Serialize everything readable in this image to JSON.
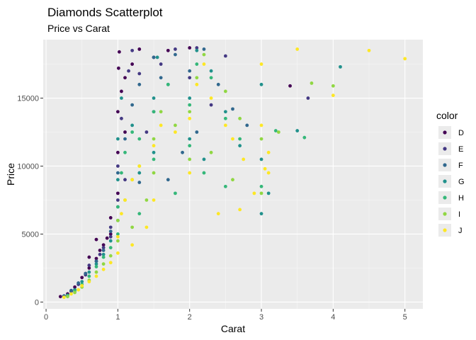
{
  "chart_data": {
    "type": "scatter",
    "title": "Diamonds Scatterplot",
    "subtitle": "Price vs Carat",
    "xlabel": "Carat",
    "ylabel": "Price",
    "xlim": [
      -0.04,
      5.25
    ],
    "ylim": [
      -500,
      19300
    ],
    "x_ticks": [
      0,
      1,
      2,
      3,
      4,
      5
    ],
    "y_ticks": [
      0,
      5000,
      10000,
      15000
    ],
    "y_tick_labels": [
      "0",
      "5000",
      "10000",
      "15000"
    ],
    "grid": true,
    "legend": {
      "title": "color",
      "placement": "right",
      "entries": [
        "D",
        "E",
        "F",
        "G",
        "H",
        "I",
        "J"
      ]
    },
    "colors": {
      "D": "#440154",
      "E": "#443983",
      "F": "#31688e",
      "G": "#21918c",
      "H": "#35b779",
      "I": "#90d743",
      "J": "#fde725"
    },
    "panel_background": "#ebebeb",
    "series": [
      {
        "name": "D",
        "points": [
          [
            0.2,
            400
          ],
          [
            0.3,
            600
          ],
          [
            0.4,
            1100
          ],
          [
            0.5,
            1800
          ],
          [
            0.6,
            2500
          ],
          [
            0.7,
            3200
          ],
          [
            0.8,
            4200
          ],
          [
            0.9,
            5000
          ],
          [
            0.9,
            6200
          ],
          [
            1.0,
            8000
          ],
          [
            1.0,
            11000
          ],
          [
            1.0,
            14000
          ],
          [
            1.01,
            17200
          ],
          [
            1.02,
            18400
          ],
          [
            1.05,
            15500
          ],
          [
            1.1,
            12500
          ],
          [
            1.1,
            16500
          ],
          [
            1.2,
            17500
          ],
          [
            1.3,
            18600
          ],
          [
            1.5,
            18000
          ],
          [
            1.7,
            18500
          ],
          [
            2.0,
            18700
          ],
          [
            3.4,
            15900
          ],
          [
            0.55,
            2100
          ],
          [
            0.75,
            3800
          ],
          [
            0.85,
            4700
          ],
          [
            0.35,
            800
          ],
          [
            0.6,
            3300
          ],
          [
            0.7,
            4600
          ]
        ]
      },
      {
        "name": "E",
        "points": [
          [
            0.25,
            450
          ],
          [
            0.35,
            800
          ],
          [
            0.45,
            1300
          ],
          [
            0.55,
            2000
          ],
          [
            0.7,
            3000
          ],
          [
            0.8,
            4000
          ],
          [
            0.9,
            5500
          ],
          [
            1.0,
            7500
          ],
          [
            1.0,
            10000
          ],
          [
            1.05,
            13500
          ],
          [
            1.15,
            17000
          ],
          [
            1.2,
            18500
          ],
          [
            1.3,
            16800
          ],
          [
            1.5,
            14000
          ],
          [
            1.6,
            17500
          ],
          [
            1.8,
            18600
          ],
          [
            2.0,
            16500
          ],
          [
            2.1,
            18700
          ],
          [
            2.5,
            18100
          ],
          [
            3.65,
            15000
          ],
          [
            0.6,
            2700
          ],
          [
            0.75,
            3500
          ],
          [
            0.9,
            4800
          ],
          [
            1.1,
            9000
          ],
          [
            1.4,
            12500
          ],
          [
            2.3,
            14500
          ]
        ]
      },
      {
        "name": "F",
        "points": [
          [
            0.25,
            450
          ],
          [
            0.35,
            850
          ],
          [
            0.45,
            1400
          ],
          [
            0.55,
            2100
          ],
          [
            0.7,
            3000
          ],
          [
            0.8,
            3800
          ],
          [
            0.9,
            5200
          ],
          [
            1.0,
            7000
          ],
          [
            1.0,
            9500
          ],
          [
            1.1,
            12000
          ],
          [
            1.2,
            14500
          ],
          [
            1.3,
            16000
          ],
          [
            1.5,
            18000
          ],
          [
            1.6,
            16500
          ],
          [
            1.8,
            18200
          ],
          [
            2.0,
            17000
          ],
          [
            2.2,
            18600
          ],
          [
            2.4,
            16000
          ],
          [
            2.6,
            14200
          ],
          [
            2.8,
            13000
          ],
          [
            1.7,
            9000
          ],
          [
            1.3,
            8800
          ],
          [
            2.1,
            12500
          ],
          [
            1.9,
            11000
          ]
        ]
      },
      {
        "name": "G",
        "points": [
          [
            0.3,
            500
          ],
          [
            0.4,
            900
          ],
          [
            0.5,
            1500
          ],
          [
            0.6,
            2200
          ],
          [
            0.7,
            2800
          ],
          [
            0.8,
            3500
          ],
          [
            0.9,
            4500
          ],
          [
            1.0,
            6000
          ],
          [
            1.0,
            9000
          ],
          [
            1.0,
            12000
          ],
          [
            1.05,
            15000
          ],
          [
            1.2,
            13000
          ],
          [
            1.5,
            11000
          ],
          [
            1.5,
            15000
          ],
          [
            1.55,
            18000
          ],
          [
            1.7,
            16000
          ],
          [
            2.0,
            12000
          ],
          [
            2.0,
            15000
          ],
          [
            2.1,
            18500
          ],
          [
            2.3,
            17000
          ],
          [
            2.5,
            14000
          ],
          [
            2.7,
            11500
          ],
          [
            3.0,
            10500
          ],
          [
            3.0,
            6500
          ],
          [
            3.5,
            12600
          ],
          [
            3.0,
            16000
          ],
          [
            3.1,
            8000
          ],
          [
            4.1,
            17300
          ],
          [
            1.3,
            9500
          ],
          [
            2.2,
            10500
          ]
        ]
      },
      {
        "name": "H",
        "points": [
          [
            0.3,
            450
          ],
          [
            0.4,
            800
          ],
          [
            0.5,
            1300
          ],
          [
            0.6,
            1900
          ],
          [
            0.7,
            2600
          ],
          [
            0.8,
            3300
          ],
          [
            0.9,
            4000
          ],
          [
            1.0,
            5000
          ],
          [
            1.0,
            7000
          ],
          [
            1.05,
            9500
          ],
          [
            1.1,
            11000
          ],
          [
            1.2,
            12500
          ],
          [
            1.3,
            12000
          ],
          [
            1.5,
            10500
          ],
          [
            1.5,
            14000
          ],
          [
            1.7,
            16000
          ],
          [
            2.0,
            11500
          ],
          [
            2.0,
            14500
          ],
          [
            2.1,
            17500
          ],
          [
            2.3,
            16500
          ],
          [
            2.5,
            13500
          ],
          [
            2.7,
            12000
          ],
          [
            3.0,
            8500
          ],
          [
            3.6,
            12100
          ],
          [
            3.2,
            12600
          ],
          [
            1.8,
            8000
          ],
          [
            1.3,
            6500
          ],
          [
            2.2,
            9500
          ],
          [
            2.5,
            8500
          ]
        ]
      },
      {
        "name": "I",
        "points": [
          [
            0.3,
            400
          ],
          [
            0.4,
            700
          ],
          [
            0.5,
            1100
          ],
          [
            0.6,
            1600
          ],
          [
            0.7,
            2200
          ],
          [
            0.8,
            2800
          ],
          [
            0.9,
            3400
          ],
          [
            1.0,
            4500
          ],
          [
            1.0,
            6000
          ],
          [
            1.1,
            7500
          ],
          [
            1.2,
            9000
          ],
          [
            1.3,
            10000
          ],
          [
            1.5,
            9500
          ],
          [
            1.5,
            12000
          ],
          [
            1.6,
            14000
          ],
          [
            1.8,
            13000
          ],
          [
            2.0,
            10500
          ],
          [
            2.0,
            14000
          ],
          [
            2.1,
            16500
          ],
          [
            2.2,
            18200
          ],
          [
            2.5,
            15500
          ],
          [
            2.7,
            13500
          ],
          [
            3.0,
            12000
          ],
          [
            3.0,
            8000
          ],
          [
            3.24,
            12500
          ],
          [
            3.7,
            16100
          ],
          [
            4.0,
            15900
          ],
          [
            1.2,
            5500
          ],
          [
            1.4,
            7500
          ],
          [
            2.3,
            11000
          ],
          [
            2.6,
            9000
          ]
        ]
      },
      {
        "name": "J",
        "points": [
          [
            0.25,
            350
          ],
          [
            0.35,
            600
          ],
          [
            0.45,
            900
          ],
          [
            0.5,
            1200
          ],
          [
            0.6,
            1500
          ],
          [
            0.7,
            1900
          ],
          [
            0.8,
            2400
          ],
          [
            0.9,
            2900
          ],
          [
            1.0,
            3600
          ],
          [
            1.0,
            4800
          ],
          [
            1.05,
            6500
          ],
          [
            1.1,
            7500
          ],
          [
            1.2,
            9000
          ],
          [
            1.3,
            10000
          ],
          [
            1.5,
            7500
          ],
          [
            1.5,
            11500
          ],
          [
            1.6,
            13000
          ],
          [
            1.8,
            12500
          ],
          [
            2.0,
            9500
          ],
          [
            2.0,
            13500
          ],
          [
            2.1,
            16000
          ],
          [
            2.2,
            17500
          ],
          [
            2.3,
            15000
          ],
          [
            2.5,
            13000
          ],
          [
            2.6,
            12000
          ],
          [
            2.7,
            6800
          ],
          [
            2.75,
            10500
          ],
          [
            3.0,
            17500
          ],
          [
            3.0,
            13000
          ],
          [
            3.05,
            9800
          ],
          [
            3.1,
            11000
          ],
          [
            3.5,
            18600
          ],
          [
            4.0,
            15200
          ],
          [
            4.5,
            18500
          ],
          [
            5.0,
            17900
          ],
          [
            1.4,
            5500
          ],
          [
            1.2,
            4200
          ],
          [
            2.4,
            6500
          ],
          [
            2.9,
            8000
          ],
          [
            3.1,
            9500
          ]
        ]
      }
    ]
  }
}
